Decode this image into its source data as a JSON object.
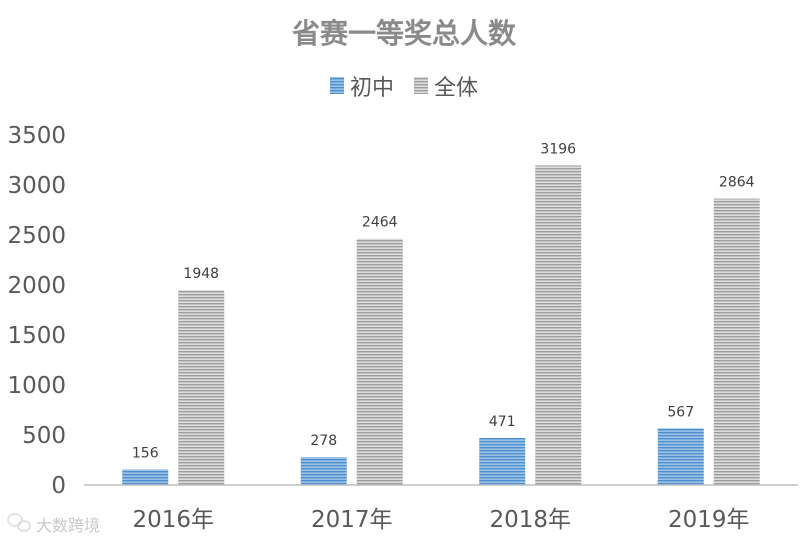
{
  "chart_data": {
    "type": "bar",
    "title": "省赛一等奖总人数",
    "categories": [
      "2016年",
      "2017年",
      "2018年",
      "2019年"
    ],
    "series": [
      {
        "name": "初中",
        "values": [
          156,
          278,
          471,
          567
        ],
        "color": "#5b9bd5"
      },
      {
        "name": "全体",
        "values": [
          1948,
          2464,
          3196,
          2864
        ],
        "color": "#bfbfbf"
      }
    ],
    "ylim": [
      0,
      3500
    ],
    "yticks": [
      "0",
      "500",
      "1000",
      "1500",
      "2000",
      "2500",
      "3000",
      "3500"
    ],
    "legend_position": "top",
    "grid": false,
    "data_labels": true
  },
  "watermark": {
    "text": "大数跨境",
    "icon": "wechat-logo-icon"
  }
}
